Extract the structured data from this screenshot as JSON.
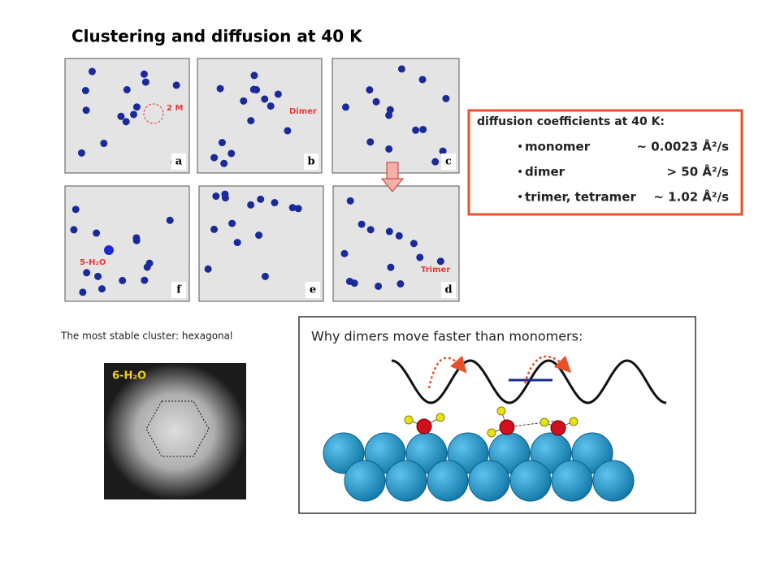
{
  "title": "Clustering and diffusion at 40 K",
  "panels": [
    {
      "label": "a",
      "annotation": "2 M"
    },
    {
      "label": "b",
      "annotation": "Dimer"
    },
    {
      "label": "c"
    },
    {
      "label": "f",
      "annotation": "5-H₂O"
    },
    {
      "label": "e"
    },
    {
      "label": "d",
      "annotation": "Trimer"
    }
  ],
  "diffusion_box": {
    "heading": "diffusion coefficients at 40 K:",
    "items": [
      {
        "species": "monomer",
        "value": "~ 0.0023 Å²/s"
      },
      {
        "species": "dimer",
        "value": "> 50 Å²/s"
      },
      {
        "species": "trimer, tetramer",
        "value": "~ 1.02 Å²/s"
      }
    ]
  },
  "cluster": {
    "caption": "The most stable cluster: hexagonal",
    "label": "6-H₂O"
  },
  "mechanism": {
    "title": "Why dimers move faster than monomers:"
  }
}
